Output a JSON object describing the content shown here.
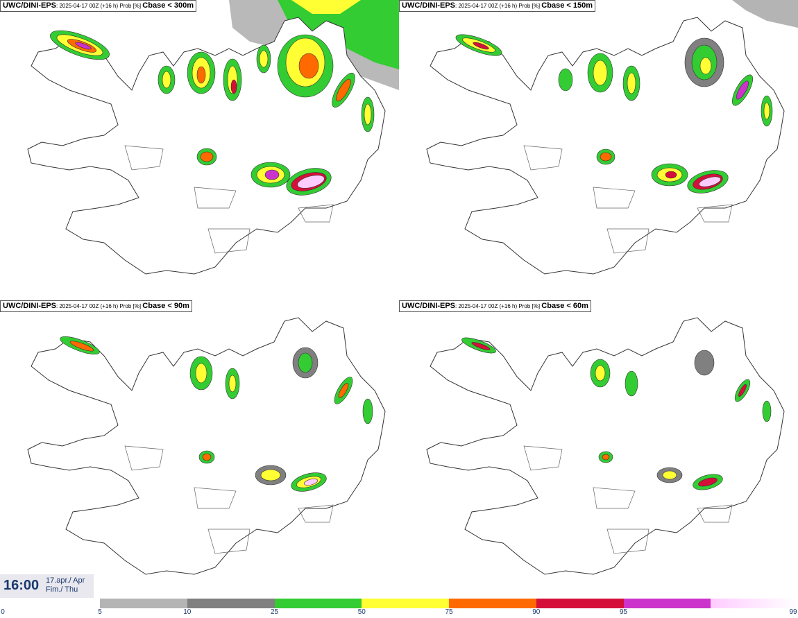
{
  "panels": [
    {
      "model": "UWC/DINI-EPS",
      "run_info": ": 2025-04-17 00Z (+16 h) Prob [%] ",
      "param": "Cbase < 300m"
    },
    {
      "model": "UWC/DINI-EPS",
      "run_info": ": 2025-04-17 00Z (+16 h) Prob [%] ",
      "param": "Cbase < 150m"
    },
    {
      "model": "UWC/DINI-EPS",
      "run_info": ": 2025-04-17 00Z (+16 h) Prob [%] ",
      "param": "Cbase < 90m"
    },
    {
      "model": "UWC/DINI-EPS",
      "run_info": ": 2025-04-17 00Z (+16 h) Prob [%] ",
      "param": "Cbase < 60m"
    }
  ],
  "valid_time": {
    "time": "16:00",
    "date_line1": "17.apr./ Apr",
    "date_line2": "Fim./ Thu"
  },
  "colorbar": {
    "ticks": [
      "0",
      "5",
      "10",
      "25",
      "50",
      "75",
      "90",
      "95",
      "99"
    ],
    "colors": [
      "#b4b4b4",
      "#808080",
      "#33cc33",
      "#ffff33",
      "#ff6a00",
      "#d4103a",
      "#cc33cc",
      "#ffccff"
    ]
  }
}
